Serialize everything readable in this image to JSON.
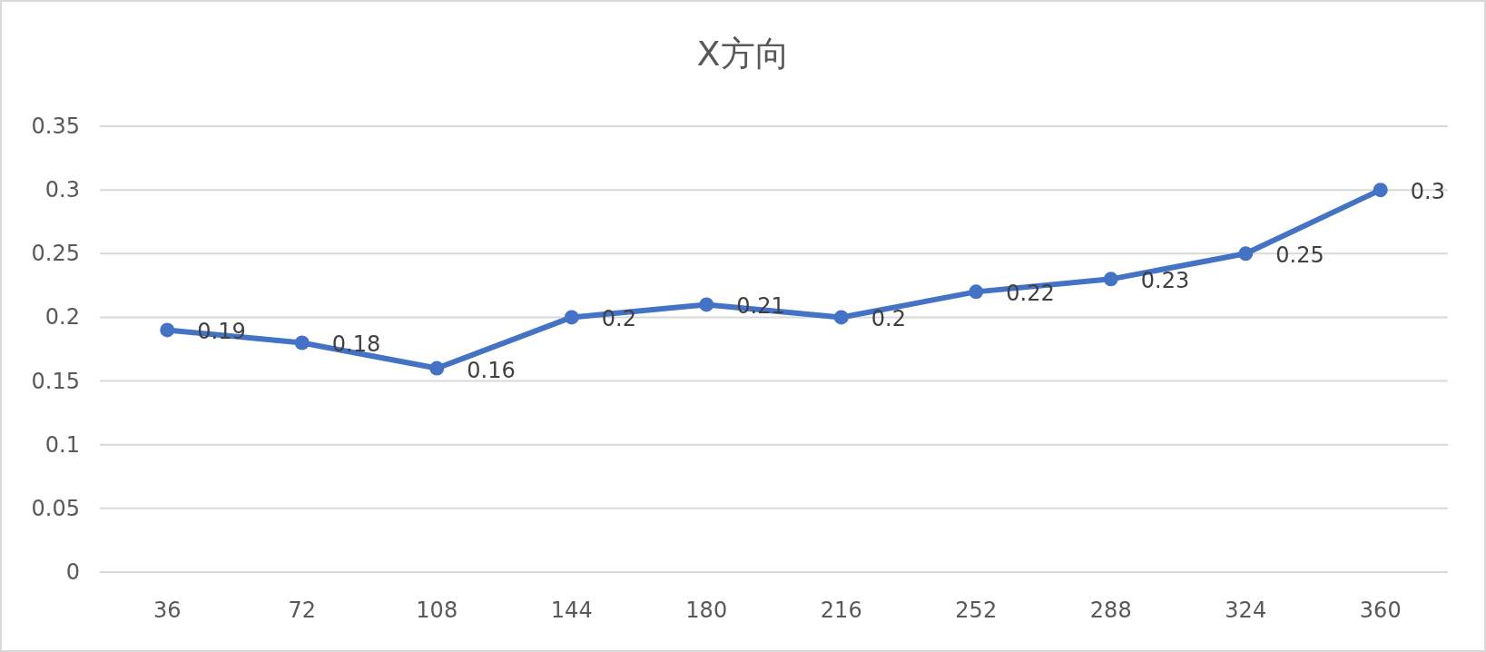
{
  "chart_data": {
    "type": "line",
    "title": "X方向",
    "categories": [
      "36",
      "72",
      "108",
      "144",
      "180",
      "216",
      "252",
      "288",
      "324",
      "360"
    ],
    "series": [
      {
        "color": "#4472c4",
        "values": [
          0.19,
          0.18,
          0.16,
          0.2,
          0.21,
          0.2,
          0.22,
          0.23,
          0.25,
          0.3
        ]
      }
    ],
    "ylim": [
      0,
      0.35
    ],
    "yticks": [
      0,
      0.05,
      0.1,
      0.15,
      0.2,
      0.25,
      0.3,
      0.35
    ],
    "grid": "y",
    "marker": "circle",
    "data_labels": true
  }
}
